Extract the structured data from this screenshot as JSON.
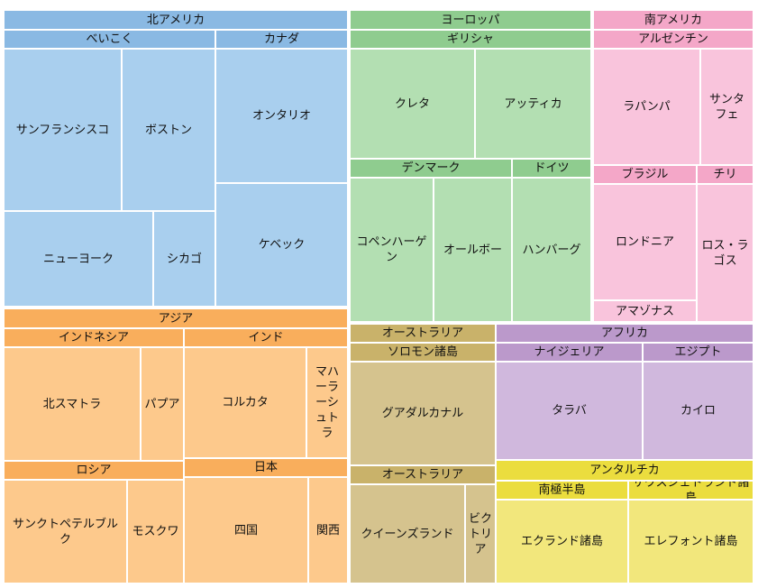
{
  "chart_data": {
    "type": "treemap",
    "title": "",
    "groups": [
      {
        "name": "北アメリカ",
        "color": "#8ab9e3",
        "subcolor": "#a9cfee",
        "leafcolor": "#a9cfee",
        "children": [
          {
            "name": "べいこく",
            "children": [
              {
                "name": "サンフランシスコ"
              },
              {
                "name": "ボストン"
              },
              {
                "name": "ニューヨーク"
              },
              {
                "name": "シカゴ"
              }
            ]
          },
          {
            "name": "カナダ",
            "children": [
              {
                "name": "オンタリオ"
              },
              {
                "name": "ケベック"
              }
            ]
          }
        ]
      },
      {
        "name": "ヨーロッパ",
        "color": "#8fcc8f",
        "subcolor": "#a7d8a6",
        "leafcolor": "#b3dfb2",
        "children": [
          {
            "name": "ギリシャ",
            "children": [
              {
                "name": "クレタ"
              },
              {
                "name": "アッティカ"
              }
            ]
          },
          {
            "name": "デンマーク",
            "children": [
              {
                "name": "コペンハーゲン"
              },
              {
                "name": "オールボー"
              }
            ]
          },
          {
            "name": "ドイツ",
            "children": [
              {
                "name": "ハンバーグ"
              }
            ]
          }
        ]
      },
      {
        "name": "南アメリカ",
        "color": "#f4a7c8",
        "subcolor": "#f8c0d8",
        "leafcolor": "#f9c4dc",
        "children": [
          {
            "name": "アルゼンチン",
            "children": [
              {
                "name": "ラパンパ"
              },
              {
                "name": "サンタフェ"
              }
            ]
          },
          {
            "name": "ブラジル",
            "children": [
              {
                "name": "ロンドニア"
              },
              {
                "name": "アマゾナス"
              }
            ]
          },
          {
            "name": "チリ",
            "children": [
              {
                "name": "ロス・ラゴス"
              }
            ]
          }
        ]
      },
      {
        "name": "アジア",
        "color": "#f9ae5c",
        "subcolor": "#fbbc74",
        "leafcolor": "#fdc98c",
        "children": [
          {
            "name": "インドネシア",
            "children": [
              {
                "name": "北スマトラ"
              },
              {
                "name": "パプア"
              }
            ]
          },
          {
            "name": "インド",
            "children": [
              {
                "name": "コルカタ"
              },
              {
                "name": "マハーラーシュトラ"
              }
            ]
          },
          {
            "name": "ロシア",
            "children": [
              {
                "name": "サンクトペテルブルク"
              },
              {
                "name": "モスクワ"
              }
            ]
          },
          {
            "name": "日本",
            "children": [
              {
                "name": "四国"
              },
              {
                "name": "関西"
              }
            ]
          }
        ]
      },
      {
        "name": "オーストラリア",
        "color": "#c9b26a",
        "subcolor": "#cfb874",
        "leafcolor": "#d5c38e",
        "children": [
          {
            "name": "ソロモン諸島",
            "children": [
              {
                "name": "グアダルカナル"
              }
            ]
          },
          {
            "name": "オーストラリア",
            "children": [
              {
                "name": "クイーンズランド"
              },
              {
                "name": "ビクトリア"
              }
            ]
          }
        ]
      },
      {
        "name": "アフリカ",
        "color": "#bb99cb",
        "subcolor": "#c2a3d2",
        "leafcolor": "#d0b8dd",
        "children": [
          {
            "name": "ナイジェリア",
            "children": [
              {
                "name": "タラバ"
              }
            ]
          },
          {
            "name": "エジプト",
            "children": [
              {
                "name": "カイロ"
              }
            ]
          }
        ]
      },
      {
        "name": "アンタルチカ",
        "color": "#ebdd3e",
        "subcolor": "#efe25e",
        "leafcolor": "#f2e77c",
        "children": [
          {
            "name": "南極半島",
            "children": [
              {
                "name": "エクランド諸島"
              }
            ]
          },
          {
            "name": "サウスシェトランド諸島",
            "children": [
              {
                "name": "エレフォント諸島"
              }
            ]
          }
        ]
      }
    ]
  }
}
